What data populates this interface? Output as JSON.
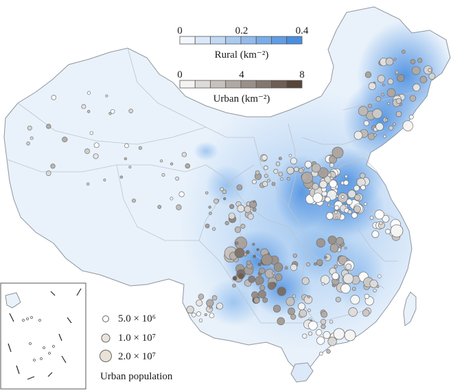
{
  "map": {
    "colors": {
      "land_base": "#e6f0fa",
      "border": "#b8bcc4",
      "outline": "#8f949c",
      "rural_low": "#ffffff",
      "rural_high": "#3d86dd",
      "urban_low": "#ffffff",
      "urban_high": "#4b3a2d",
      "circle_stroke": "#6f6f6f"
    }
  },
  "rural_scale": {
    "title": "Rural (km⁻²)",
    "ticks": [
      "0",
      "0.2",
      "0.4"
    ],
    "tick_values": [
      0,
      0.2,
      0.4
    ],
    "steps": 8
  },
  "urban_scale": {
    "title": "Urban (km⁻²)",
    "ticks": [
      "0",
      "4",
      "8"
    ],
    "tick_values": [
      0,
      4,
      8
    ],
    "steps": 8
  },
  "size_legend": {
    "title": "Urban population",
    "items": [
      {
        "label": "5.0 × 10⁶",
        "value": 5000000
      },
      {
        "label": "1.0 × 10⁷",
        "value": 10000000
      },
      {
        "label": "2.0 × 10⁷",
        "value": 20000000
      }
    ]
  }
}
